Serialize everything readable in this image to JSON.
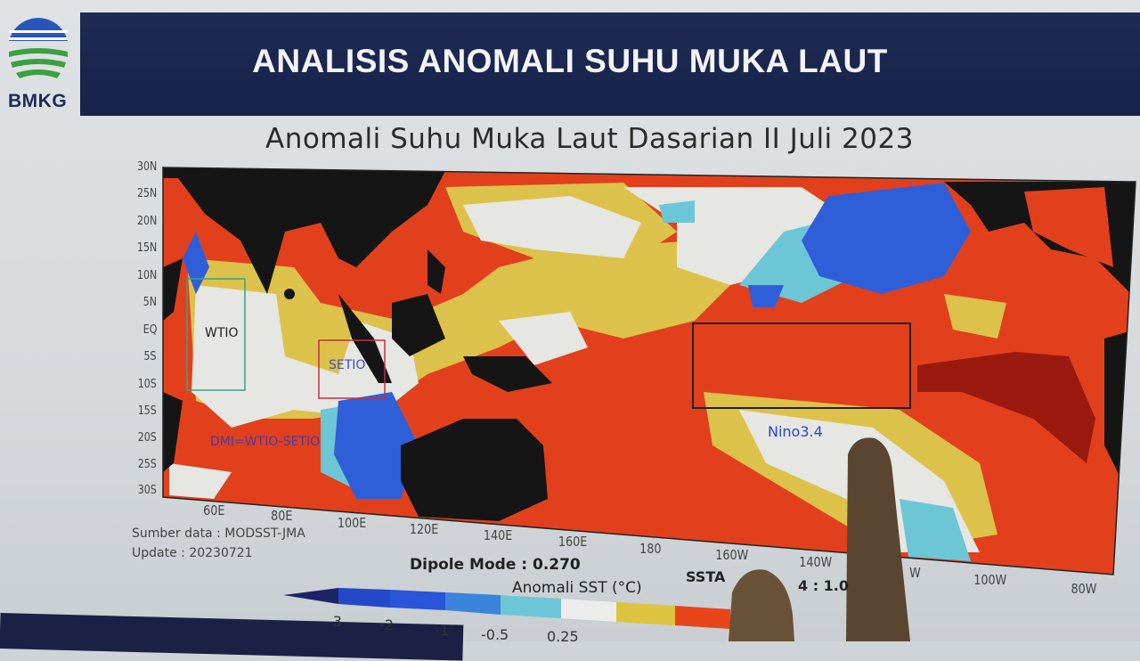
{
  "logo": {
    "text": "BMKG"
  },
  "header": {
    "title": "ANALISIS ANOMALI SUHU MUKA LAUT"
  },
  "map": {
    "title": "Anomali Suhu Muka Laut Dasarian II Juli 2023",
    "lat_ticks": [
      "30N",
      "25N",
      "20N",
      "15N",
      "10N",
      "5N",
      "EQ",
      "5S",
      "10S",
      "15S",
      "20S",
      "25S",
      "30S"
    ],
    "lon_ticks": [
      "60E",
      "80E",
      "100E",
      "120E",
      "140E",
      "160E",
      "180",
      "160W",
      "140W",
      "W",
      "100W",
      "80W"
    ],
    "regions": {
      "wtio": "WTIO",
      "setio": "SETIO",
      "dmi": "DMI=WTIO-SETIO",
      "nino": "Nino3.4"
    },
    "source": "Sumber data : MODSST-JMA",
    "update": "Update : 20230721",
    "dipole": "Dipole Mode : 0.270",
    "ssta_prefix": "SSTA",
    "ssta_fragment": "4 : 1.0",
    "colors": {
      "warm": "#e2401c",
      "hot": "#9a1a10",
      "yellow": "#dcc24a",
      "neutral": "#e6e6e2",
      "cyan": "#6cc6d6",
      "blue": "#2f5fd8",
      "land": "#151515"
    }
  },
  "legend": {
    "title": "Anomali SST (°C)",
    "labels": [
      "-3",
      "-2",
      "-1",
      "-0.5",
      "0.25"
    ],
    "colors": [
      "#1c2466",
      "#2348c8",
      "#2a55d8",
      "#3a84dc",
      "#6cc6d6",
      "#ececea",
      "#dcc440",
      "#e8461a"
    ]
  }
}
